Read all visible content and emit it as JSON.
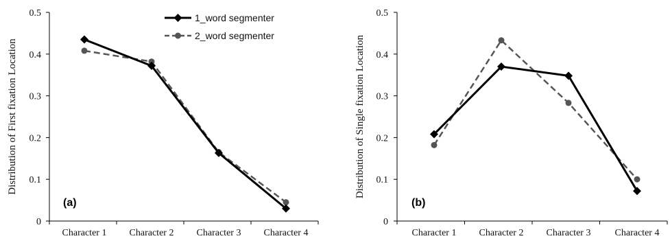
{
  "chart_data": [
    {
      "type": "line",
      "panel_label": "(a)",
      "title": "",
      "xlabel": "",
      "ylabel": "Distribution of First fixation Location",
      "categories": [
        "Character 1",
        "Character 2",
        "Character 3",
        "Character 4"
      ],
      "ylim": [
        0,
        0.5
      ],
      "yticks": [
        "0",
        "0.1",
        "0.2",
        "0.3",
        "0.4",
        "0.5"
      ],
      "grid": false,
      "legend": "top-right",
      "series": [
        {
          "name": "1_word segmenter",
          "values": [
            0.435,
            0.372,
            0.163,
            0.03
          ],
          "color": "#000000",
          "style": "solid",
          "marker": "diamond"
        },
        {
          "name": "2_word segmenter",
          "values": [
            0.408,
            0.382,
            0.165,
            0.045
          ],
          "color": "#555555",
          "style": "dashed",
          "marker": "circle"
        }
      ]
    },
    {
      "type": "line",
      "panel_label": "(b)",
      "title": "",
      "xlabel": "",
      "ylabel": "Distribution of Single fixation Location",
      "categories": [
        "Character 1",
        "Character 2",
        "Character 3",
        "Character 4"
      ],
      "ylim": [
        0,
        0.5
      ],
      "yticks": [
        "0",
        "0.1",
        "0.2",
        "0.3",
        "0.4",
        "0.5"
      ],
      "grid": false,
      "legend": "none",
      "series": [
        {
          "name": "1_word segmenter",
          "values": [
            0.208,
            0.37,
            0.348,
            0.072
          ],
          "color": "#000000",
          "style": "solid",
          "marker": "diamond"
        },
        {
          "name": "2_word segmenter",
          "values": [
            0.182,
            0.433,
            0.283,
            0.1
          ],
          "color": "#555555",
          "style": "dashed",
          "marker": "circle"
        }
      ]
    }
  ]
}
